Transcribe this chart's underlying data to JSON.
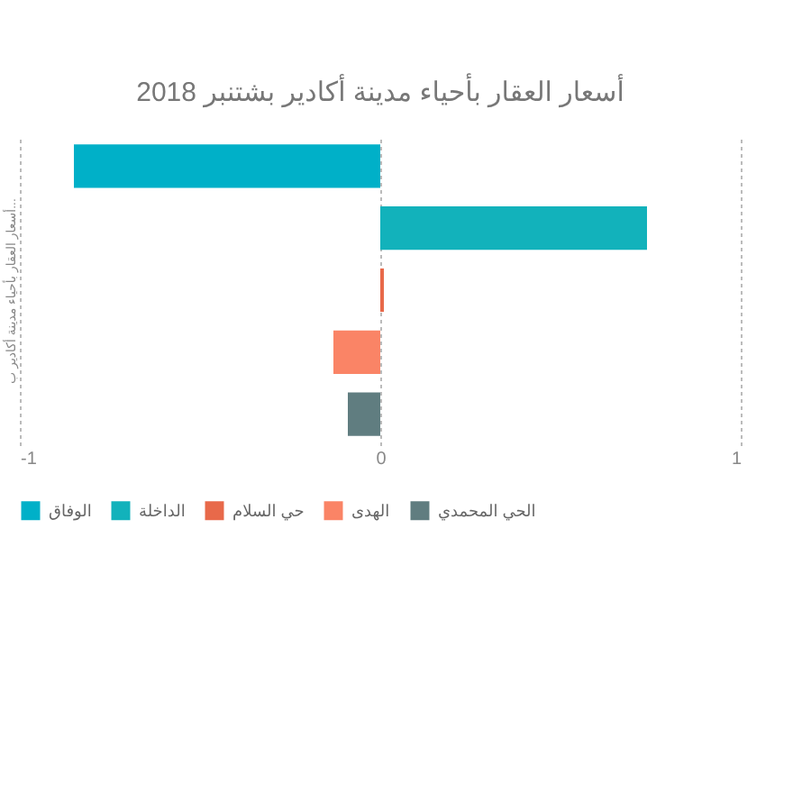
{
  "chart_data": {
    "type": "bar",
    "orientation": "horizontal",
    "title": "أسعار العقار بأحياء مدينة أكادير بشتنبر 2018",
    "ylabel": "أسعار العقار بأحياء مدينة أكادير ب...",
    "categories": [
      null,
      null,
      null,
      null,
      null
    ],
    "series": [
      {
        "name": "الوفاق",
        "color": "#00b0c8",
        "values": [
          -0.85,
          null,
          null,
          null,
          null
        ]
      },
      {
        "name": "الداخلة",
        "color": "#12b2bb",
        "values": [
          null,
          0.74,
          null,
          null,
          null
        ]
      },
      {
        "name": "حي السلام",
        "color": "#e8694a",
        "values": [
          null,
          null,
          0.01,
          null,
          null
        ]
      },
      {
        "name": "الهدى",
        "color": "#fa8466",
        "values": [
          null,
          null,
          null,
          -0.13,
          null
        ]
      },
      {
        "name": "الحي المحمدي",
        "color": "#607d80",
        "values": [
          null,
          null,
          null,
          null,
          -0.09
        ]
      }
    ],
    "stacked": true,
    "xlim": [
      -1,
      1
    ],
    "xticks": [
      -1,
      0,
      1
    ],
    "grid": "x",
    "legend": "bottom",
    "tick_labels": "x"
  }
}
